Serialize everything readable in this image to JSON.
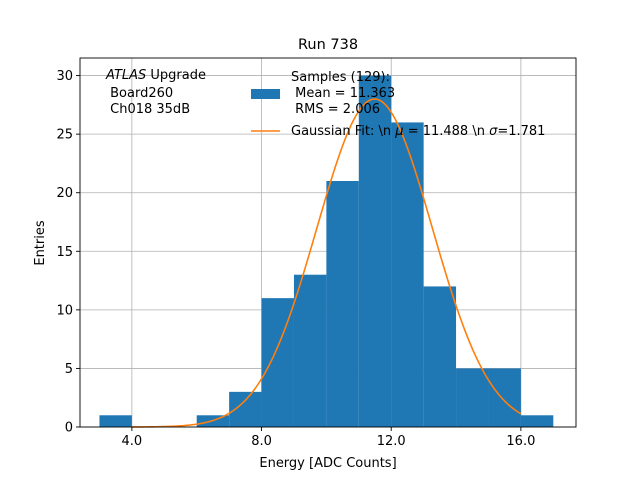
{
  "chart_data": {
    "type": "histogram",
    "title": "Run 738",
    "xlabel": "Energy [ADC Counts]",
    "ylabel": "Entries",
    "xlim": [
      2.4,
      17.7
    ],
    "ylim": [
      0,
      31.5
    ],
    "x_ticks": [
      4.0,
      8.0,
      12.0,
      16.0
    ],
    "x_tick_labels": [
      "4.0",
      "8.0",
      "12.0",
      "16.0"
    ],
    "y_ticks": [
      0,
      5,
      10,
      15,
      20,
      25,
      30
    ],
    "y_tick_labels": [
      "0",
      "5",
      "10",
      "15",
      "20",
      "25",
      "30"
    ],
    "grid": true,
    "bins": [
      {
        "x0": 3,
        "x1": 4,
        "count": 1
      },
      {
        "x0": 4,
        "x1": 5,
        "count": 0
      },
      {
        "x0": 5,
        "x1": 6,
        "count": 0
      },
      {
        "x0": 6,
        "x1": 7,
        "count": 1
      },
      {
        "x0": 7,
        "x1": 8,
        "count": 3
      },
      {
        "x0": 8,
        "x1": 9,
        "count": 11
      },
      {
        "x0": 9,
        "x1": 10,
        "count": 13
      },
      {
        "x0": 10,
        "x1": 11,
        "count": 21
      },
      {
        "x0": 11,
        "x1": 12,
        "count": 30
      },
      {
        "x0": 12,
        "x1": 13,
        "count": 26
      },
      {
        "x0": 13,
        "x1": 14,
        "count": 12
      },
      {
        "x0": 14,
        "x1": 15,
        "count": 5
      },
      {
        "x0": 15,
        "x1": 16,
        "count": 5
      },
      {
        "x0": 16,
        "x1": 17,
        "count": 1
      }
    ],
    "fit": {
      "type": "gaussian",
      "amplitude": 28.0,
      "mu": 11.488,
      "sigma": 1.781,
      "x_range": [
        4.0,
        16.0
      ]
    },
    "legend": {
      "position": "top-center",
      "samples_label": "Samples (129):\n Mean = 11.363\n RMS = 2.006",
      "fit_label": "Gaussian Fit: \\n $\\mu$ = 11.488 \\n $\\sigma$=1.781"
    },
    "annotation": {
      "italic": "ATLAS",
      "line1_rest": " Upgrade",
      "line2": " Board260",
      "line3": " Ch018 35dB"
    },
    "colors": {
      "bars": "#1f77b4",
      "fit": "#ff7f0e",
      "grid": "#b0b0b0"
    }
  },
  "legend_text": {
    "samples_line1": "Samples (129):",
    "samples_line2": " Mean = 11.363",
    "samples_line3": " RMS = 2.006",
    "fit_prefix": "Gaussian Fit: \\n ",
    "mu_symbol": "μ",
    "fit_middle": " = 11.488 \\n ",
    "sigma_symbol": "σ",
    "fit_suffix": "=1.781"
  }
}
